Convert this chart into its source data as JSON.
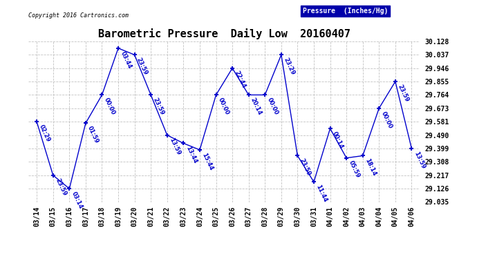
{
  "title": "Barometric Pressure  Daily Low  20160407",
  "copyright": "Copyright 2016 Cartronics.com",
  "legend_label": "Pressure  (Inches/Hg)",
  "background_color": "#ffffff",
  "plot_bg_color": "#ffffff",
  "line_color": "#0000cc",
  "grid_color": "#bbbbbb",
  "dates": [
    "03/14",
    "03/15",
    "03/16",
    "03/17",
    "03/18",
    "03/19",
    "03/20",
    "03/21",
    "03/22",
    "03/23",
    "03/24",
    "03/25",
    "03/26",
    "03/27",
    "03/28",
    "03/29",
    "03/30",
    "03/31",
    "04/01",
    "04/02",
    "04/03",
    "04/04",
    "04/05",
    "04/06"
  ],
  "values": [
    29.581,
    29.217,
    29.126,
    29.572,
    29.764,
    30.082,
    30.037,
    29.764,
    29.49,
    29.435,
    29.39,
    29.764,
    29.946,
    29.764,
    29.764,
    30.037,
    29.35,
    29.172,
    29.535,
    29.335,
    29.35,
    29.673,
    29.855,
    29.399
  ],
  "labels": [
    "02:29",
    "23:59",
    "03:14",
    "01:59",
    "00:00",
    "03:44",
    "23:59",
    "23:59",
    "13:59",
    "13:44",
    "15:44",
    "00:00",
    "22:44",
    "20:14",
    "00:00",
    "23:29",
    "23:59",
    "11:44",
    "00:14",
    "05:59",
    "18:14",
    "00:00",
    "23:59",
    "13:59"
  ],
  "ylim": [
    29.035,
    30.128
  ],
  "yticks": [
    29.035,
    29.126,
    29.217,
    29.308,
    29.399,
    29.49,
    29.581,
    29.673,
    29.764,
    29.855,
    29.946,
    30.037,
    30.128
  ]
}
